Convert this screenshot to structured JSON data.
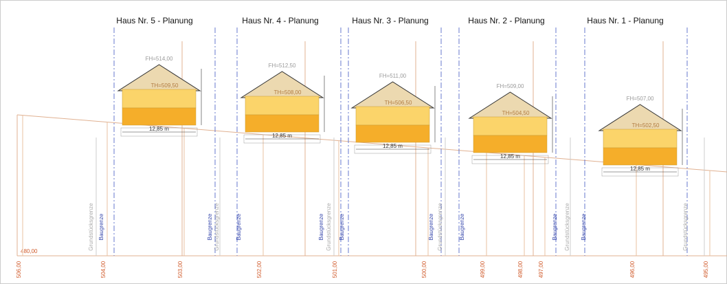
{
  "houses": [
    {
      "title": "Haus Nr. 5 - Planung",
      "fh": "FH=514,00",
      "th": "TH=509,50",
      "width": "12,85 m"
    },
    {
      "title": "Haus Nr. 4 - Planung",
      "fh": "FH=512,50",
      "th": "TH=508,00",
      "width": "12,85 m"
    },
    {
      "title": "Haus Nr. 3 - Planung",
      "fh": "FH=511,00",
      "th": "TH=506,50",
      "width": "12,85 m"
    },
    {
      "title": "Haus Nr. 2 - Planung",
      "fh": "FH=509,00",
      "th": "TH=504,50",
      "width": "12,85 m"
    },
    {
      "title": "Haus Nr. 1 - Planung",
      "fh": "FH=507,00",
      "th": "TH=502,50",
      "width": "12,85 m"
    }
  ],
  "boundaries": [
    "Grundstücksgrenze",
    "Baugrenze",
    "Baugrenze",
    "Grundstücksgrenze",
    "Baugrenze",
    "Baugrenze",
    "Grundstücksgrenze",
    "Baugrenze",
    "Baugrenze",
    "Grundstücksgrenze",
    "Baugrenze",
    "Baugrenze",
    "Grundstücksgrenze",
    "Baugrenze",
    "Grundstücksgrenze"
  ],
  "elevations": [
    "506,00",
    "504,00",
    "503,00",
    "502,00",
    "501,00",
    "500,00",
    "499,00",
    "498,00",
    "497,00",
    "496,00",
    "495,00"
  ],
  "datum": "480,00"
}
